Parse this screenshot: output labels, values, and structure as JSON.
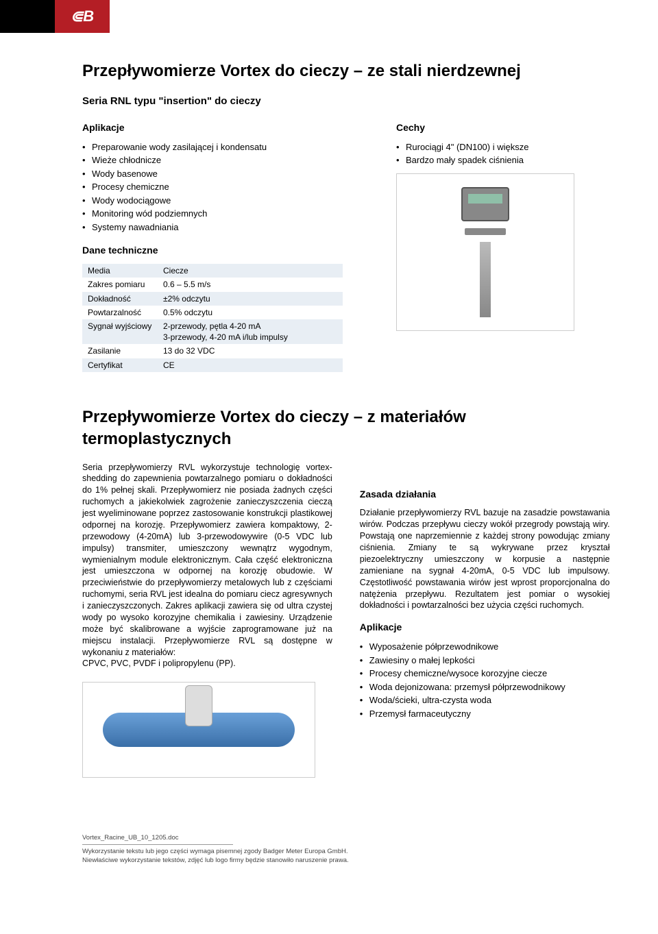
{
  "header": {
    "logo_text": "⋐B"
  },
  "product1": {
    "title": "Przepływomierze Vortex do cieczy – ze stali nierdzewnej",
    "subtitle": "Seria RNL typu \"insertion\" do cieczy",
    "applications_heading": "Aplikacje",
    "applications": [
      "Preparowanie wody zasilającej i kondensatu",
      "Wieże chłodnicze",
      "Wody basenowe",
      "Procesy chemiczne",
      "Wody wodociągowe",
      "Monitoring wód podziemnych",
      "Systemy nawadniania"
    ],
    "features_heading": "Cechy",
    "features": [
      "Rurociągi 4\" (DN100) i większe",
      "Bardzo mały spadek ciśnienia"
    ],
    "tech_heading": "Dane techniczne",
    "spec_rows": [
      {
        "label": "Media",
        "value": "Ciecze"
      },
      {
        "label": "Zakres pomiaru",
        "value": "0.6 – 5.5 m/s"
      },
      {
        "label": "Dokładność",
        "value": "±2% odczytu"
      },
      {
        "label": "Powtarzalność",
        "value": "0.5% odczytu"
      },
      {
        "label": "Sygnał wyjściowy",
        "value": "2-przewody, pętla 4-20 mA\n3-przewody, 4-20 mA i/lub impulsy"
      },
      {
        "label": "Zasilanie",
        "value": "13 do 32 VDC"
      },
      {
        "label": "Certyfikat",
        "value": "CE"
      }
    ]
  },
  "product2": {
    "title": "Przepływomierze Vortex do cieczy – z materiałów termoplastycznych",
    "intro_p1": "Seria przepływomierzy RVL wykorzystuje technologię vortex-shedding do zapewnienia powtarzalnego pomiaru o dokładności do 1% pełnej skali. Przepływomierz nie posiada żadnych części ruchomych a jakiekolwiek zagrożenie zanieczyszczenia cieczą jest wyeliminowane poprzez zastosowanie konstrukcji plastikowej odpornej na korozję. Przepływomierz zawiera kompaktowy, 2-przewodowy (4-20mA) lub 3-przewodowywire (0-5 VDC lub impulsy) transmiter, umieszczony wewnątrz wygodnym, wymienialnym module elektronicznym. Cała część elektroniczna jest umieszczona w odpornej na korozję obudowie. W przeciwieństwie do przepływomierzy metalowych lub z częściami ruchomymi, seria RVL jest idealna do pomiaru ciecz agresywnych i zanieczyszczonych. Zakres aplikacji zawiera się od ultra czystej wody po wysoko korozyjne chemikalia i zawiesiny. Urządzenie może być skalibrowane a wyjście zaprogramowane już na miejscu instalacji. Przepływomierze RVL są dostępne w wykonaniu z materiałów:",
    "intro_p2": "CPVC, PVC, PVDF i polipropylenu (PP).",
    "principle_heading": "Zasada działania",
    "principle_text": "Działanie przepływomierzy RVL bazuje na zasadzie powstawania wirów. Podczas przepływu cieczy wokół przegrody powstają wiry. Powstają one naprzemiennie z każdej strony powodując zmiany ciśnienia. Zmiany te są wykrywane przez kryształ piezoelektryczny umieszczony w korpusie a następnie zamieniane na sygnał 4-20mA, 0-5 VDC lub impulsowy. Częstotliwość powstawania wirów jest wprost proporcjonalna do natężenia przepływu. Rezultatem jest pomiar o wysokiej dokładności i powtarzalności bez użycia części ruchomych.",
    "applications_heading": "Aplikacje",
    "applications": [
      "Wyposażenie półprzewodnikowe",
      "Zawiesiny o małej lepkości",
      "Procesy chemiczne/wysoce korozyjne ciecze",
      "Woda dejonizowana: przemysł półprzewodnikowy",
      "Woda/ścieki, ultra-czysta woda",
      "Przemysł farmaceutyczny"
    ]
  },
  "footer": {
    "filename": "Vortex_Racine_UB_10_1205.doc",
    "line1": "Wykorzystanie tekstu lub jego części wymaga pisemnej zgody Badger Meter Europa GmbH.",
    "line2": "Niewłaściwe wykorzystanie tekstów, zdjęć lub logo firmy będzie stanowiło naruszenie prawa."
  },
  "colors": {
    "brand_red": "#b41e25",
    "table_band": "#e8eef4",
    "text": "#000000",
    "border_gray": "#cccccc"
  }
}
